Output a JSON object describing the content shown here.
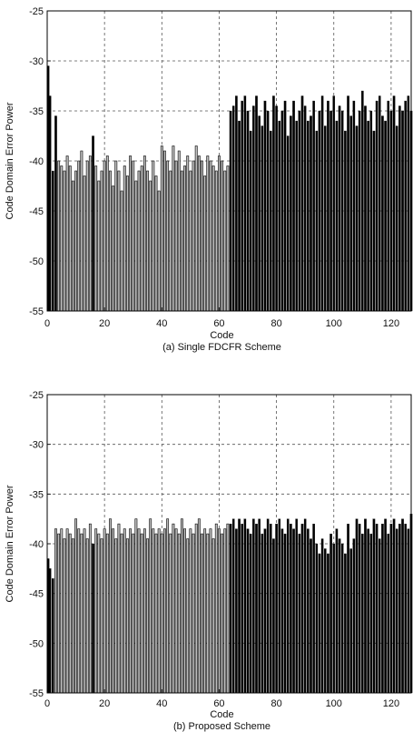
{
  "chart_data": [
    {
      "type": "bar",
      "caption": "(a) Single FDCFR Scheme",
      "xlabel": "Code",
      "ylabel": "Code Domain Error Power",
      "xlim": [
        0,
        127
      ],
      "ylim": [
        -55,
        -25
      ],
      "xticks": [
        "0",
        "20",
        "40",
        "60",
        "80",
        "100",
        "120"
      ],
      "yticks": [
        "-25",
        "-30",
        "-35",
        "-40",
        "-45",
        "-50",
        "-55"
      ],
      "grid": true,
      "series": [
        {
          "name": "",
          "color": "#000000",
          "codes": [
            0,
            1,
            2,
            3,
            16,
            64,
            65,
            66,
            67,
            68,
            69,
            70,
            71,
            72,
            73,
            74,
            75,
            76,
            77,
            78,
            79,
            80,
            81,
            82,
            83,
            84,
            85,
            86,
            87,
            88,
            89,
            90,
            91,
            92,
            93,
            94,
            95,
            96,
            97,
            98,
            99,
            100,
            101,
            102,
            103,
            104,
            105,
            106,
            107,
            108,
            109,
            110,
            111,
            112,
            113,
            114,
            115,
            116,
            117,
            118,
            119,
            120,
            121,
            122,
            123,
            124,
            125,
            126,
            127
          ],
          "values": [
            -30.5,
            -33.5,
            -41,
            -35.5,
            -37.5,
            -35,
            -34.5,
            -33.5,
            -36,
            -34,
            -33.5,
            -35,
            -37,
            -34.5,
            -33.5,
            -35.5,
            -36.5,
            -34,
            -35,
            -37,
            -33.5,
            -34.5,
            -36,
            -35,
            -34,
            -37.5,
            -35.5,
            -34,
            -36,
            -35,
            -33.5,
            -34.5,
            -36,
            -35.5,
            -34,
            -37,
            -35,
            -33.5,
            -36.5,
            -34,
            -35,
            -33.5,
            -36,
            -34.5,
            -35,
            -37,
            -33.5,
            -35.5,
            -34,
            -36.5,
            -35,
            -33,
            -34.5,
            -36,
            -35,
            -37,
            -34,
            -33.5,
            -35.5,
            -36,
            -34,
            -35,
            -33.5,
            -36.5,
            -34.5,
            -35,
            -34,
            -33.5,
            -35
          ]
        },
        {
          "name": "",
          "color": "#bdbdbd",
          "codes": [
            4,
            5,
            6,
            7,
            8,
            9,
            10,
            11,
            12,
            13,
            14,
            15,
            17,
            18,
            19,
            20,
            21,
            22,
            23,
            24,
            25,
            26,
            27,
            28,
            29,
            30,
            31,
            32,
            33,
            34,
            35,
            36,
            37,
            38,
            39,
            40,
            41,
            42,
            43,
            44,
            45,
            46,
            47,
            48,
            49,
            50,
            51,
            52,
            53,
            54,
            55,
            56,
            57,
            58,
            59,
            60,
            61,
            62,
            63
          ],
          "values": [
            -40,
            -40.5,
            -41,
            -39.5,
            -40.5,
            -42,
            -41,
            -40,
            -39,
            -41.5,
            -40,
            -39.5,
            -40.5,
            -42,
            -41,
            -40,
            -39.5,
            -41,
            -42.5,
            -40,
            -41,
            -43,
            -40.5,
            -41.5,
            -39.5,
            -40,
            -42,
            -41,
            -40.5,
            -39.5,
            -41,
            -42,
            -40,
            -41.5,
            -43,
            -38.5,
            -39,
            -40,
            -41,
            -38.5,
            -40,
            -39,
            -41,
            -40.5,
            -39.5,
            -41,
            -40,
            -38.5,
            -39.5,
            -40,
            -41.5,
            -39.5,
            -40,
            -40.5,
            -41,
            -39.5,
            -40,
            -41,
            -40.5
          ]
        }
      ]
    },
    {
      "type": "bar",
      "caption": "(b) Proposed Scheme",
      "xlabel": "Code",
      "ylabel": "Code Domain Error Power",
      "xlim": [
        0,
        127
      ],
      "ylim": [
        -55,
        -25
      ],
      "xticks": [
        "0",
        "20",
        "40",
        "60",
        "80",
        "100",
        "120"
      ],
      "yticks": [
        "-25",
        "-30",
        "-35",
        "-40",
        "-45",
        "-50",
        "-55"
      ],
      "grid": true,
      "series": [
        {
          "name": "",
          "color": "#000000",
          "codes": [
            0,
            1,
            2,
            16,
            64,
            65,
            66,
            67,
            68,
            69,
            70,
            71,
            72,
            73,
            74,
            75,
            76,
            77,
            78,
            79,
            80,
            81,
            82,
            83,
            84,
            85,
            86,
            87,
            88,
            89,
            90,
            91,
            92,
            93,
            94,
            95,
            96,
            97,
            98,
            99,
            100,
            101,
            102,
            103,
            104,
            105,
            106,
            107,
            108,
            109,
            110,
            111,
            112,
            113,
            114,
            115,
            116,
            117,
            118,
            119,
            120,
            121,
            122,
            123,
            124,
            125,
            126,
            127
          ],
          "values": [
            -41.5,
            -42.5,
            -43.5,
            -40,
            -38,
            -37.5,
            -38.5,
            -37.5,
            -38,
            -37.5,
            -38.5,
            -39,
            -37.5,
            -38,
            -37.5,
            -39,
            -38.5,
            -37.5,
            -38,
            -39.5,
            -38,
            -37.5,
            -38.5,
            -39,
            -37.5,
            -38,
            -38.5,
            -37.5,
            -39,
            -38,
            -37.5,
            -38.5,
            -39.5,
            -38,
            -40,
            -41,
            -39.5,
            -40.5,
            -41,
            -39,
            -40,
            -38.5,
            -39.5,
            -40,
            -41,
            -38,
            -40.5,
            -39.5,
            -37.5,
            -38,
            -39,
            -37.5,
            -38.5,
            -39,
            -37.5,
            -38,
            -39.5,
            -38,
            -37.5,
            -39,
            -38,
            -37.5,
            -38.5,
            -38,
            -37.5,
            -38,
            -38.5,
            -37
          ]
        },
        {
          "name": "",
          "color": "#bdbdbd",
          "codes": [
            3,
            4,
            5,
            6,
            7,
            8,
            9,
            10,
            11,
            12,
            13,
            14,
            15,
            17,
            18,
            19,
            20,
            21,
            22,
            23,
            24,
            25,
            26,
            27,
            28,
            29,
            30,
            31,
            32,
            33,
            34,
            35,
            36,
            37,
            38,
            39,
            40,
            41,
            42,
            43,
            44,
            45,
            46,
            47,
            48,
            49,
            50,
            51,
            52,
            53,
            54,
            55,
            56,
            57,
            58,
            59,
            60,
            61,
            62,
            63
          ],
          "values": [
            -38.5,
            -39,
            -38.5,
            -39.5,
            -38.5,
            -39,
            -39.5,
            -37.5,
            -38.5,
            -39,
            -38.5,
            -39.5,
            -38,
            -38.5,
            -39,
            -39.5,
            -38.5,
            -39,
            -37.5,
            -38.5,
            -39.5,
            -38,
            -39,
            -38.5,
            -39.5,
            -38.5,
            -39,
            -37.5,
            -38.5,
            -39,
            -38.5,
            -39.5,
            -37.5,
            -38.5,
            -39,
            -38.5,
            -39,
            -38.5,
            -37.5,
            -39,
            -38,
            -38.5,
            -39,
            -37.5,
            -38.5,
            -39.5,
            -38.5,
            -39,
            -38,
            -37.5,
            -39,
            -38.5,
            -39,
            -38.5,
            -39.5,
            -38,
            -38.5,
            -39,
            -38.5,
            -38
          ]
        }
      ]
    }
  ]
}
